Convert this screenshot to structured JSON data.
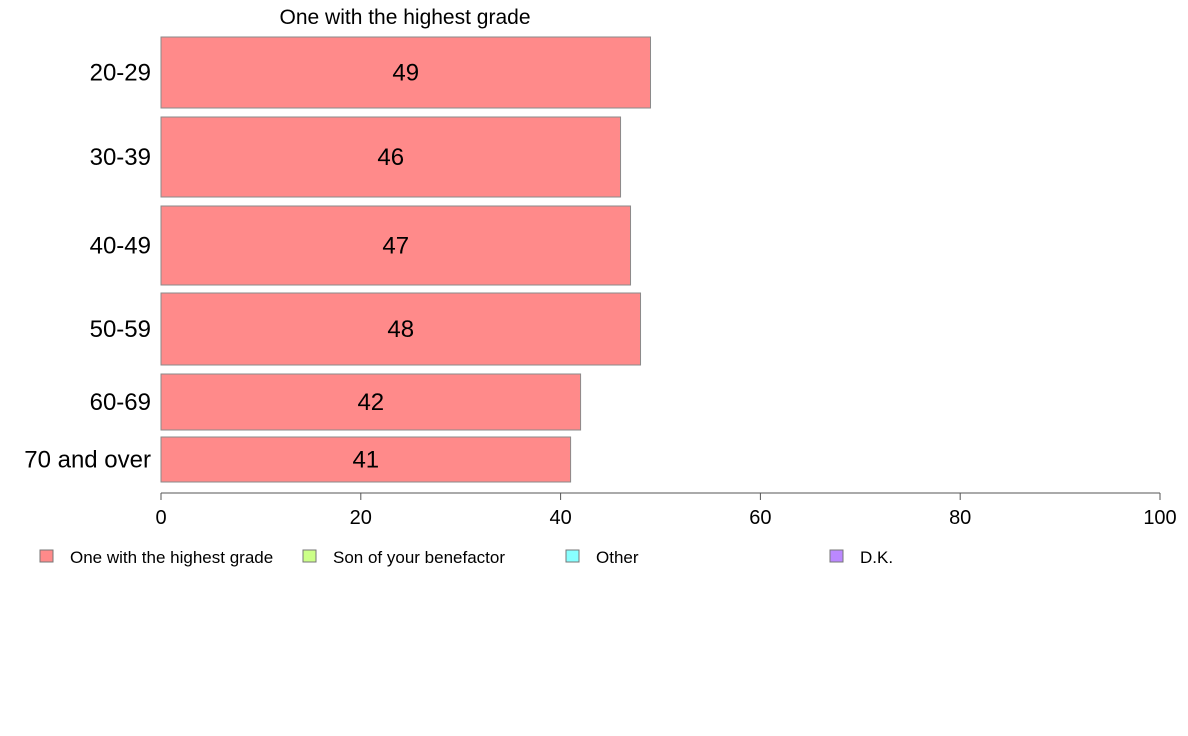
{
  "chart_data": {
    "type": "bar",
    "orientation": "horizontal",
    "panel_title": "One with the highest grade",
    "categories": [
      "20-29",
      "30-39",
      "40-49",
      "50-59",
      "60-69",
      "70 and over"
    ],
    "series": [
      {
        "name": "One with the highest grade",
        "values": [
          49,
          46,
          47,
          48,
          42,
          41
        ],
        "color": "#ff8a8a"
      }
    ],
    "xlim": [
      0,
      100
    ],
    "xticks": [
      0,
      20,
      40,
      60,
      80,
      100
    ],
    "grid": false,
    "legend": {
      "placement": "bottom",
      "entries": [
        {
          "label": "One with the highest grade",
          "color": "#ff8a8a"
        },
        {
          "label": "Son of your benefactor",
          "color": "#ccff88"
        },
        {
          "label": "Other",
          "color": "#88ffff"
        },
        {
          "label": "D.K.",
          "color": "#bb88ff"
        }
      ]
    }
  }
}
